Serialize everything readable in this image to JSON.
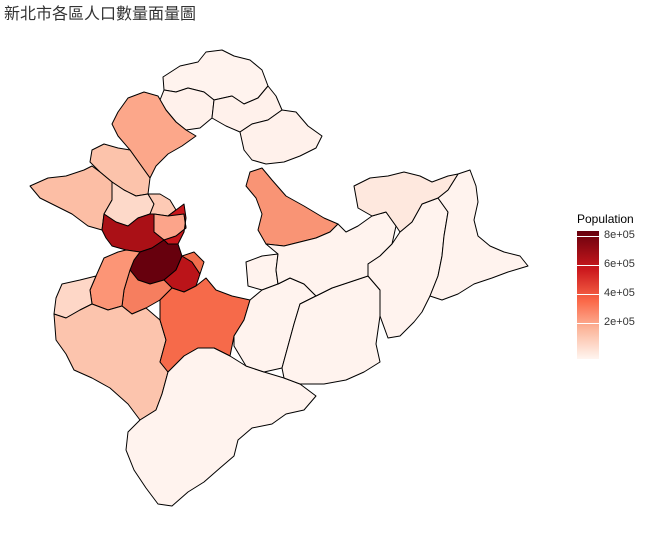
{
  "title": "新北市各區人口數量面量圖",
  "legend": {
    "title": "Population",
    "ticks": [
      "8e+05",
      "6e+05",
      "4e+05",
      "2e+05"
    ],
    "colors": {
      "high": "#67000d",
      "low": "#fff5f0"
    },
    "range": [
      10000,
      830000
    ]
  },
  "chart_data": {
    "type": "heatmap",
    "title": "新北市各區人口數量面量圖",
    "legend_title": "Population",
    "legend_ticks": [
      800000,
      600000,
      400000,
      200000
    ],
    "colors": {
      "north-coast": "#fff1eb",
      "tamsui": "#fca78a",
      "bali": "#fcc3ab",
      "linkou": "#fcbea5",
      "wugu": "#fdd9c9",
      "luzhou": "#fdcab5",
      "sanchong": "#c8171c",
      "xinzhuang": "#aa1016",
      "banqiao": "#67000d",
      "zhonghe": "#bb1419",
      "yonghe": "#f16e4c",
      "tucheng": "#f67e5f",
      "shulin": "#fc9576",
      "yingge": "#fed7c7",
      "sanxia": "#fcc4ad",
      "xindian": "#f66a4a",
      "xizhi": "#f99475",
      "rural": "#fff3ee",
      "ruifang": "#fee8de"
    }
  }
}
